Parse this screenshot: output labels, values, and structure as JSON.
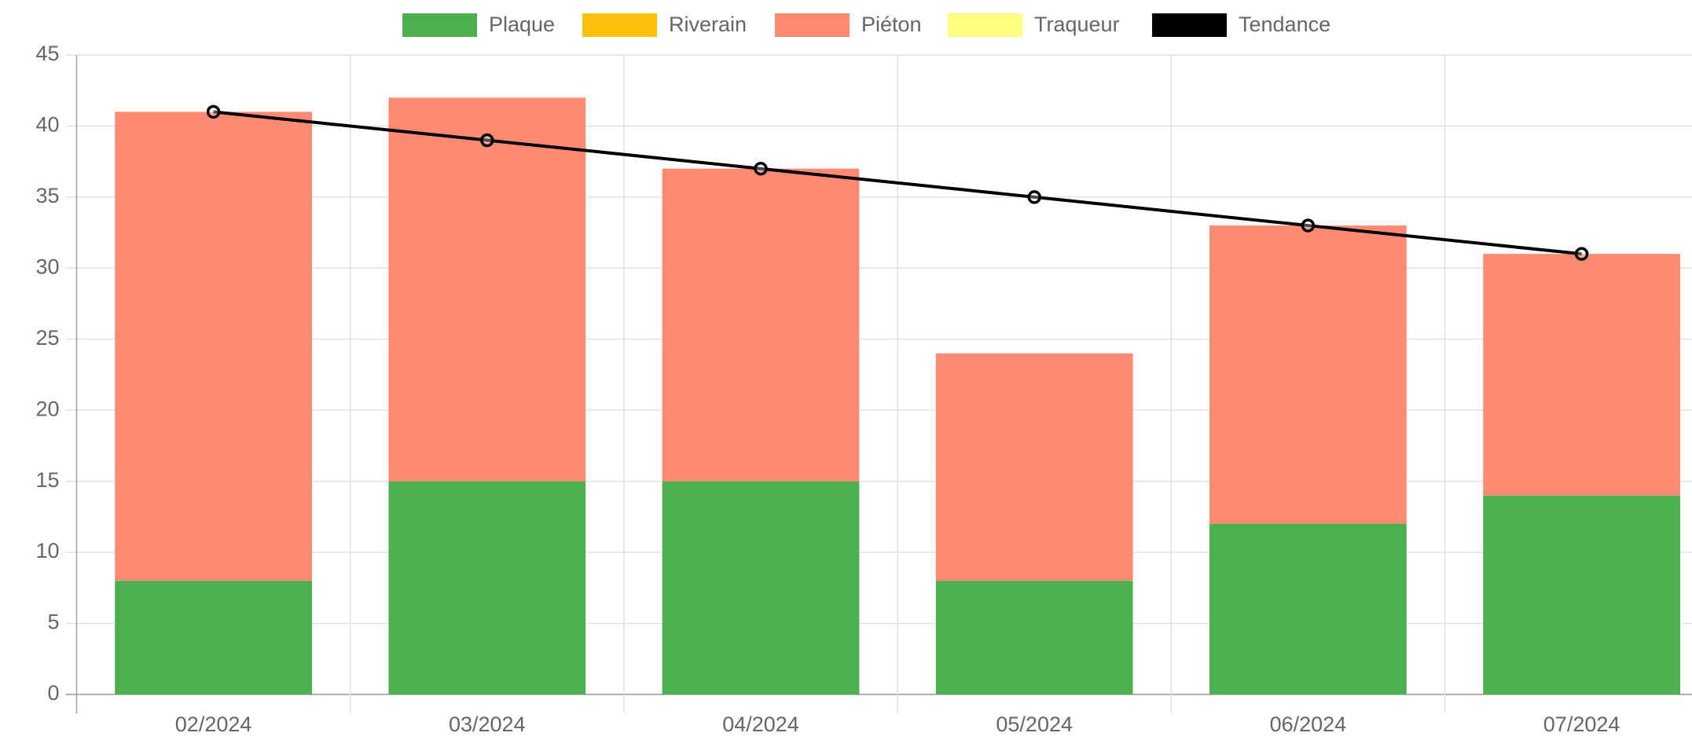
{
  "chart_data": {
    "type": "bar",
    "stacked": true,
    "categories": [
      "02/2024",
      "03/2024",
      "04/2024",
      "05/2024",
      "06/2024",
      "07/2024"
    ],
    "series": [
      {
        "name": "Plaque",
        "color": "#4caf50",
        "values": [
          8,
          15,
          15,
          8,
          12,
          14
        ]
      },
      {
        "name": "Riverain",
        "color": "#ffc107",
        "values": [
          0,
          0,
          0,
          0,
          0,
          0
        ]
      },
      {
        "name": "Piéton",
        "color": "#ff8a73",
        "values": [
          33,
          27,
          22,
          16,
          21,
          17
        ]
      },
      {
        "name": "Traqueur",
        "color": "#ffff80",
        "values": [
          0,
          0,
          0,
          0,
          0,
          0
        ]
      },
      {
        "name": "Tendance",
        "color": "#000000",
        "type": "line",
        "values": [
          41,
          39,
          37,
          35,
          33,
          31
        ]
      }
    ],
    "ylim": [
      0,
      45
    ],
    "yticks": [
      0,
      5,
      10,
      15,
      20,
      25,
      30,
      35,
      40,
      45
    ],
    "grid": true,
    "legend": "top"
  }
}
